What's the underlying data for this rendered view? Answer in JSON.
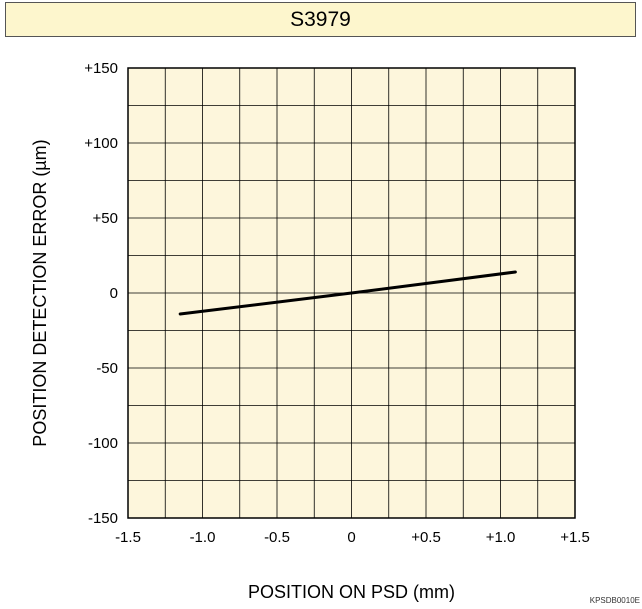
{
  "chart_data": {
    "type": "line",
    "title": "S3979",
    "xlabel": "POSITION ON PSD (mm)",
    "ylabel_prefix": "POSITION DETECTION ERROR (",
    "ylabel_unit_mu": "µ",
    "ylabel_suffix": "m)",
    "xlim": [
      -1.5,
      1.5
    ],
    "ylim": [
      -150,
      150
    ],
    "x_ticks": [
      -1.5,
      -1.0,
      -0.5,
      0,
      0.5,
      1.0,
      1.5
    ],
    "x_tick_labels": [
      "-1.5",
      "-1.0",
      "-0.5",
      "0",
      "+0.5",
      "+1.0",
      "+1.5"
    ],
    "y_ticks": [
      150,
      100,
      50,
      0,
      -50,
      -100,
      -150
    ],
    "y_tick_labels": [
      "+150",
      "+100",
      "+50",
      "0",
      "-50",
      "-100",
      "-150"
    ],
    "grid": true,
    "grid_x_step": 0.25,
    "grid_y_step": 25,
    "series": [
      {
        "x": [
          -1.15,
          0,
          1.1
        ],
        "y": [
          -14,
          0,
          14
        ],
        "color": "#000000"
      }
    ]
  },
  "colors": {
    "plot_bg": "#fdf6dc",
    "title_bg": "#fdf6cd",
    "grid": "#000000"
  },
  "footer_code": "KPSDB0010E"
}
